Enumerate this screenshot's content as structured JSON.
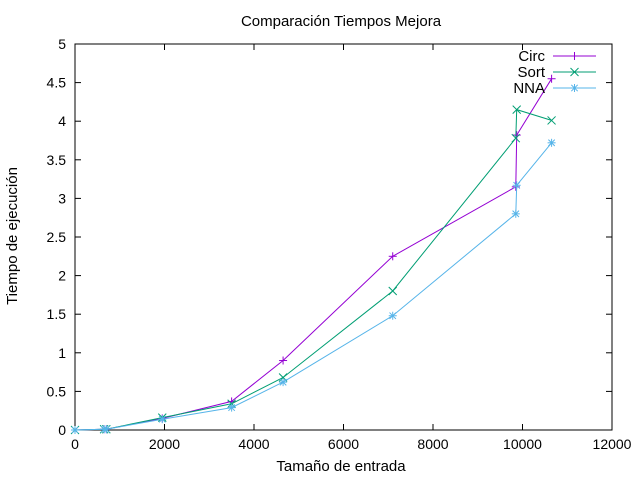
{
  "chart_data": {
    "type": "line",
    "title": "Comparación Tiempos Mejora",
    "xlabel": "Tamaño de entrada",
    "ylabel": "Tiempo de ejecución",
    "xlim": [
      0,
      12000
    ],
    "ylim": [
      0,
      5
    ],
    "xticks": [
      0,
      2000,
      4000,
      6000,
      8000,
      10000,
      12000
    ],
    "yticks": [
      0,
      0.5,
      1,
      1.5,
      2,
      2.5,
      3,
      3.5,
      4,
      4.5,
      5
    ],
    "xtick_labels": [
      "0",
      "2000",
      "4000",
      "6000",
      "8000",
      "10000",
      "12000"
    ],
    "ytick_labels": [
      "0",
      "0.5",
      "1",
      "1.5",
      "2",
      "2.5",
      "3",
      "3.5",
      "4",
      "4.5",
      "5"
    ],
    "grid": false,
    "legend_position": "top-right",
    "series": [
      {
        "name": "Circ",
        "color": "#9400d3",
        "marker": "plus",
        "points": [
          [
            0,
            0
          ],
          [
            650,
            0.01
          ],
          [
            700,
            0.01
          ],
          [
            1950,
            0.15
          ],
          [
            3500,
            0.37
          ],
          [
            4650,
            0.9
          ],
          [
            7100,
            2.25
          ],
          [
            9850,
            3.15
          ],
          [
            9870,
            3.82
          ],
          [
            10650,
            4.55
          ]
        ]
      },
      {
        "name": "Sort",
        "color": "#009e73",
        "marker": "cross",
        "points": [
          [
            0,
            0
          ],
          [
            650,
            0.01
          ],
          [
            700,
            0.01
          ],
          [
            1950,
            0.16
          ],
          [
            3500,
            0.34
          ],
          [
            4650,
            0.68
          ],
          [
            7100,
            1.8
          ],
          [
            9850,
            3.78
          ],
          [
            9870,
            4.15
          ],
          [
            10650,
            4.01
          ]
        ]
      },
      {
        "name": "NNA",
        "color": "#56b4e9",
        "marker": "star",
        "points": [
          [
            0,
            0
          ],
          [
            650,
            0.01
          ],
          [
            700,
            0.01
          ],
          [
            1950,
            0.14
          ],
          [
            3500,
            0.29
          ],
          [
            4650,
            0.62
          ],
          [
            7100,
            1.48
          ],
          [
            9850,
            2.8
          ],
          [
            9870,
            3.17
          ],
          [
            10650,
            3.72
          ]
        ]
      }
    ]
  }
}
